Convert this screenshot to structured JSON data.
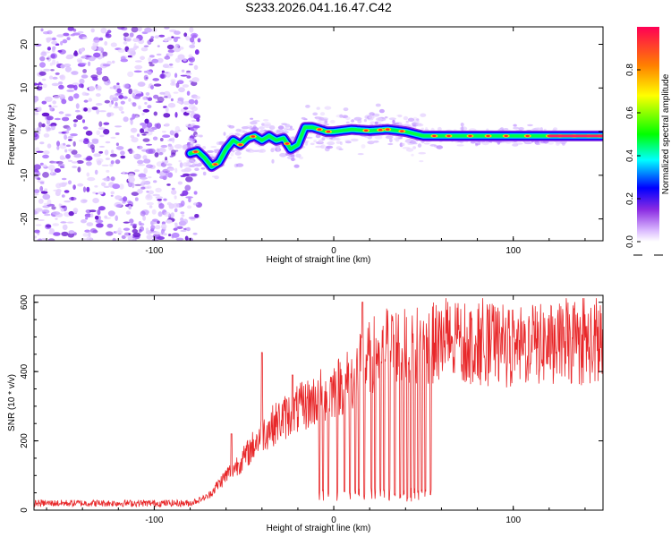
{
  "title": "S233.2026.041.16.47.C42",
  "chart_data": [
    {
      "type": "heatmap",
      "name": "spectrogram",
      "xlabel": "Height of straight line (km)",
      "ylabel": "Frequency (Hz)",
      "xlim": [
        -167,
        150
      ],
      "ylim": [
        -25,
        24
      ],
      "xticks": [
        -100,
        0,
        100
      ],
      "yticks": [
        -20,
        -10,
        0,
        10,
        20
      ],
      "noise_region_x": [
        -167,
        -75
      ],
      "signal_start_x": -80,
      "ridge": {
        "x": [
          -80,
          -76,
          -72,
          -68,
          -64,
          -60,
          -56,
          -52,
          -48,
          -44,
          -40,
          -36,
          -32,
          -28,
          -24,
          -20,
          -16,
          -12,
          -8,
          -4,
          0,
          10,
          20,
          30,
          40,
          50,
          60,
          70,
          80,
          90,
          100,
          110,
          120,
          130,
          140,
          150
        ],
        "y": [
          -5,
          -4.5,
          -6,
          -8,
          -7,
          -4,
          -2,
          -3,
          -1.5,
          -1,
          -2,
          -1,
          -2,
          -1.5,
          -4,
          -3,
          1,
          1,
          0.5,
          0,
          0,
          0.5,
          0.2,
          0.5,
          0,
          -1,
          -1,
          -1,
          -1,
          -1,
          -1,
          -1,
          -1,
          -1,
          -1,
          -1
        ]
      },
      "colorbar": {
        "label": "Normalized spectral amplitude",
        "range": [
          0,
          1
        ],
        "ticks": [
          0.0,
          0.2,
          0.4,
          0.6,
          0.8
        ]
      }
    },
    {
      "type": "line",
      "name": "snr",
      "xlabel": "Height of straight line (km)",
      "ylabel": "SNR (10 * v/v)",
      "xlim": [
        -167,
        150
      ],
      "ylim": [
        0,
        620
      ],
      "xticks": [
        -100,
        0,
        100
      ],
      "yticks": [
        0,
        200,
        400,
        600
      ],
      "color": "#e8282a",
      "envelope": {
        "x": [
          -167,
          -80,
          -70,
          -60,
          -50,
          -40,
          -30,
          -20,
          -10,
          0,
          10,
          20,
          30,
          40,
          50,
          60,
          80,
          100,
          120,
          150
        ],
        "y": [
          20,
          20,
          40,
          100,
          150,
          220,
          260,
          290,
          320,
          350,
          380,
          440,
          480,
          470,
          480,
          480,
          480,
          470,
          480,
          480
        ]
      },
      "spikes": [
        {
          "x": -57,
          "y": 220
        },
        {
          "x": -40,
          "y": 455
        },
        {
          "x": -23,
          "y": 390
        },
        {
          "x": 16,
          "y": 600
        }
      ],
      "dropouts_x": [
        -8,
        -6,
        -3,
        2,
        6,
        9,
        12,
        14,
        17,
        21,
        23,
        26,
        28,
        31,
        34,
        37,
        39,
        41,
        43,
        45,
        47,
        49,
        51,
        54
      ]
    }
  ]
}
